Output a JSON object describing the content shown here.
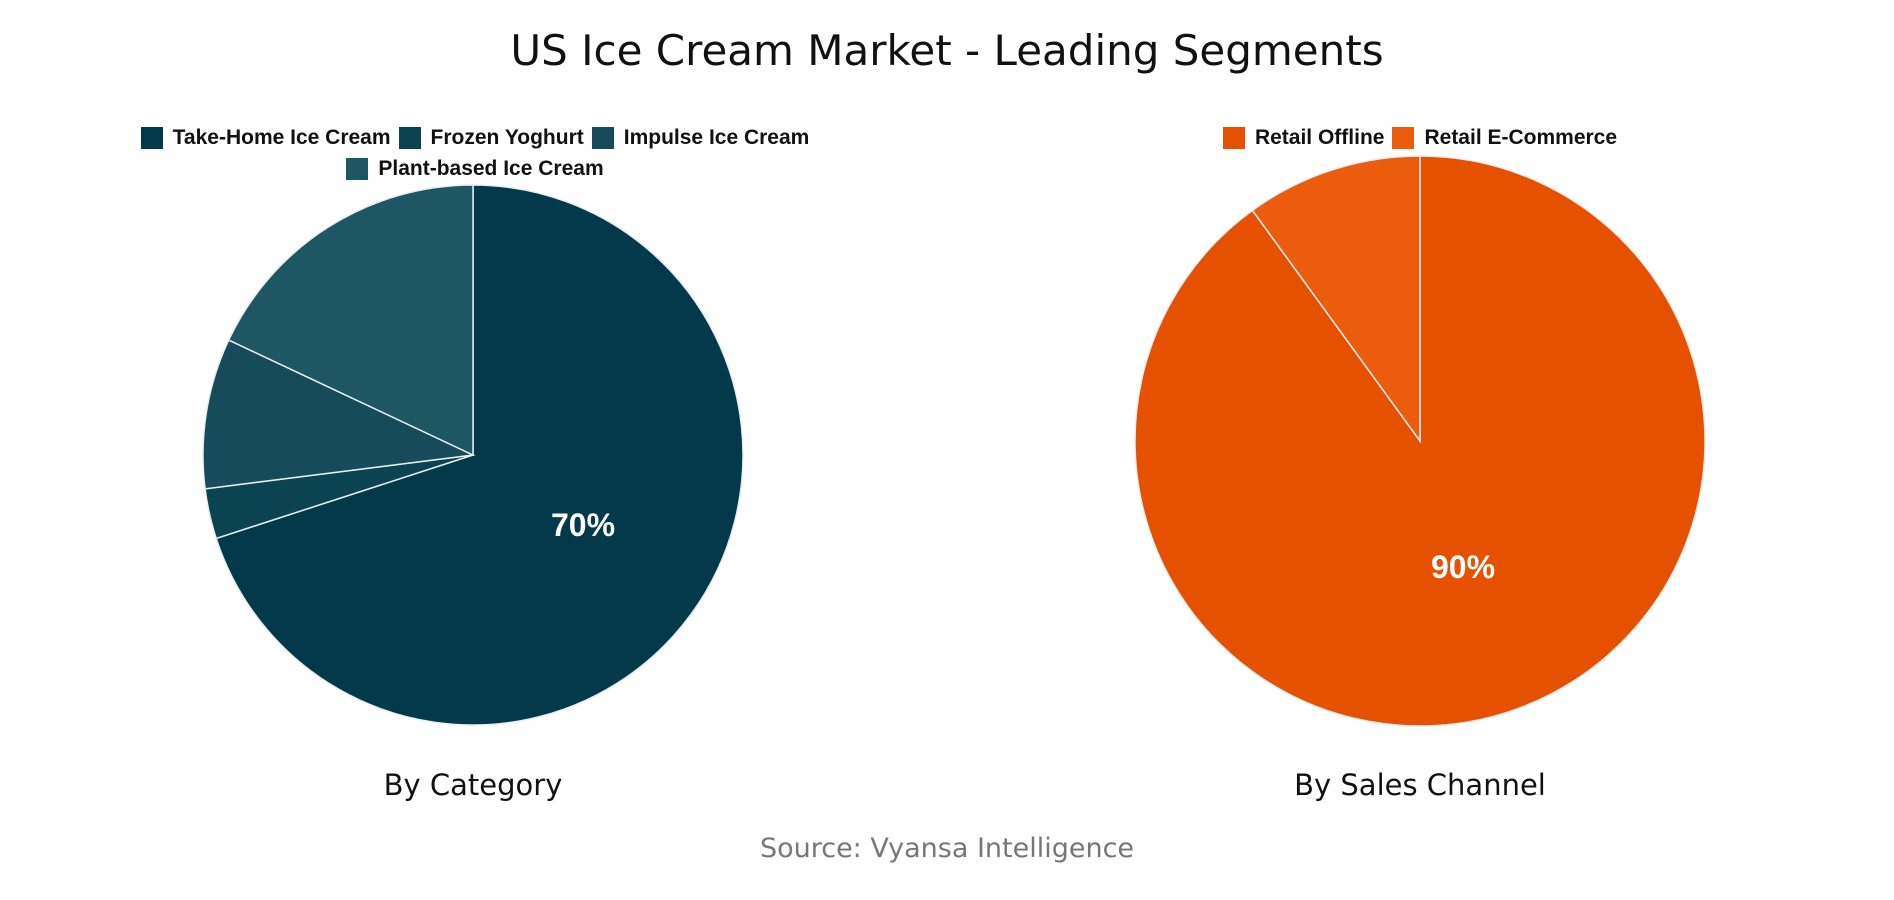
{
  "title": "US Ice Cream Market - Leading Segments",
  "source": "Source: Vyansa Intelligence",
  "chart_data": [
    {
      "type": "pie",
      "title": "By Category",
      "categories": [
        "Take-Home Ice Cream",
        "Frozen Yoghurt",
        "Impulse Ice Cream",
        "Plant-based Ice Cream"
      ],
      "values": [
        70,
        3,
        9,
        18
      ],
      "colors": [
        "#03394a",
        "#0c4352",
        "#174b5b",
        "#1f5664"
      ],
      "data_labels": [
        "70%",
        "",
        "",
        ""
      ],
      "legend": "top"
    },
    {
      "type": "pie",
      "title": "By Sales Channel",
      "categories": [
        "Retail Offline",
        "Retail E-Commerce"
      ],
      "values": [
        90,
        10
      ],
      "colors": [
        "#e65100",
        "#ec5c0d"
      ],
      "data_labels": [
        "90%",
        ""
      ],
      "legend": "top"
    }
  ]
}
